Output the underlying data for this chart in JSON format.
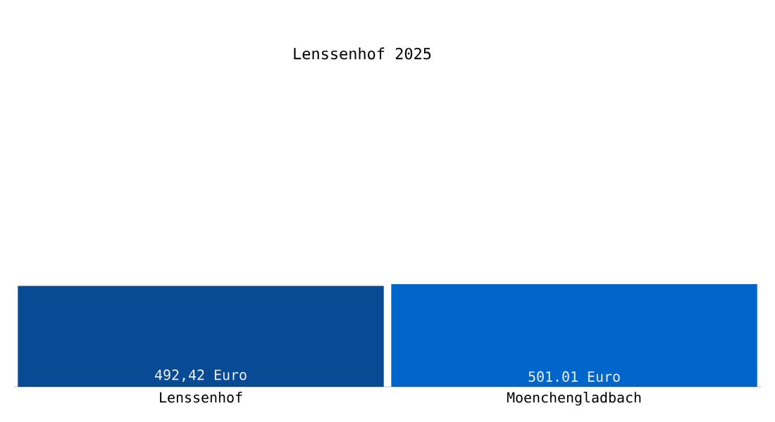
{
  "chart_data": {
    "type": "bar",
    "title": "Lenssenhof 2025",
    "categories": [
      "Lenssenhof",
      "Moenchengladbach"
    ],
    "values": [
      492.42,
      501.01
    ],
    "colors": [
      "#084a94",
      "#0066cc"
    ],
    "value_labels": [
      "492,42 Euro",
      "501.01 Euro"
    ],
    "tick_labels": "x"
  }
}
